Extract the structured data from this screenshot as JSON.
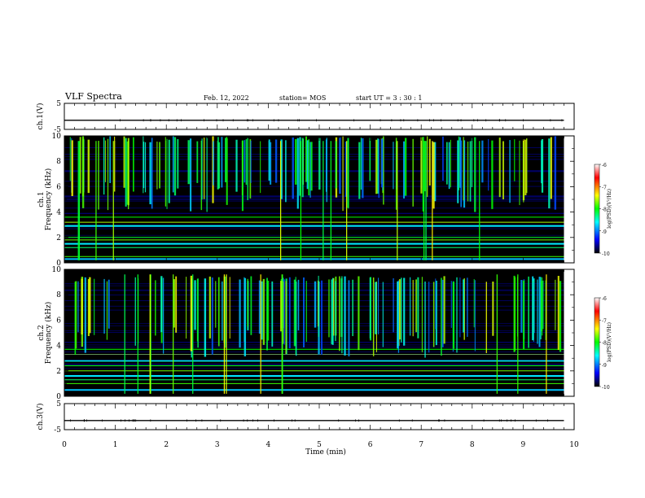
{
  "header": {
    "title": "VLF Spectra",
    "date": "Feb. 12, 2022",
    "station": "station= MOS",
    "start": "start  UT =   3 : 30 : 1"
  },
  "chart_data": [
    {
      "type": "line",
      "panel": "ch1-voltage",
      "ylabel": "ch.1(V)",
      "ylim": [
        -5,
        5
      ],
      "yticks": [
        5,
        -5
      ],
      "xlim": [
        0,
        10
      ],
      "series": [
        {
          "x": [
            0,
            9.8
          ],
          "values": [
            -1.5,
            -1.5
          ]
        }
      ]
    },
    {
      "type": "heatmap",
      "panel": "ch1-spectrogram",
      "ylabel_top": "ch.1",
      "ylabel": "Frequency (kHz)",
      "ylim": [
        0,
        10
      ],
      "yticks": [
        0,
        2,
        4,
        6,
        8,
        10
      ],
      "xlim": [
        0,
        9.8
      ],
      "color_scale": {
        "label": "log(PSD)(V²/Hz)",
        "range": [
          -10,
          -6
        ],
        "ticks": [
          "-6",
          "-7",
          "-8",
          "-9",
          "-10"
        ],
        "colors": [
          "#000000",
          "#0000ff",
          "#00ffff",
          "#00ff00",
          "#ffff00",
          "#ff0000",
          "#ffffff"
        ]
      },
      "lines_khz": [
        0.3,
        0.5,
        1.2,
        1.5,
        1.8,
        2.0,
        2.9,
        3.2,
        3.6
      ],
      "activity_band_khz": [
        6.5,
        9.5
      ]
    },
    {
      "type": "heatmap",
      "panel": "ch2-spectrogram",
      "ylabel_top": "ch.2",
      "ylabel": "Frequency (kHz)",
      "ylim": [
        0,
        10
      ],
      "yticks": [
        0,
        2,
        4,
        6,
        8,
        10
      ],
      "xlim": [
        0,
        9.8
      ],
      "color_scale": {
        "label": "log(PSD)(V²/Hz)",
        "range": [
          -10,
          -6
        ],
        "ticks": [
          "-6",
          "-7",
          "-8",
          "-9",
          "-10"
        ],
        "colors": [
          "#000000",
          "#0000ff",
          "#00ffff",
          "#00ff00",
          "#ffff00",
          "#ff0000",
          "#ffffff"
        ]
      },
      "lines_khz": [
        0.5,
        1.0,
        1.3,
        1.6,
        2.0,
        2.4,
        2.8,
        3.3,
        3.7
      ],
      "activity_band_khz": [
        5.5,
        9.0
      ]
    },
    {
      "type": "line",
      "panel": "ch3-voltage",
      "ylabel": "ch.3(V)",
      "ylim": [
        -5,
        5
      ],
      "yticks": [
        5,
        -5
      ],
      "xlim": [
        0,
        10
      ],
      "series": [
        {
          "x": [
            0,
            9.8
          ],
          "values": [
            -1.5,
            -1.5
          ]
        }
      ]
    }
  ],
  "xaxis": {
    "label": "Time (min)",
    "range": [
      0,
      10
    ],
    "ticks": [
      "0",
      "1",
      "2",
      "3",
      "4",
      "5",
      "6",
      "7",
      "8",
      "9",
      "10"
    ]
  }
}
